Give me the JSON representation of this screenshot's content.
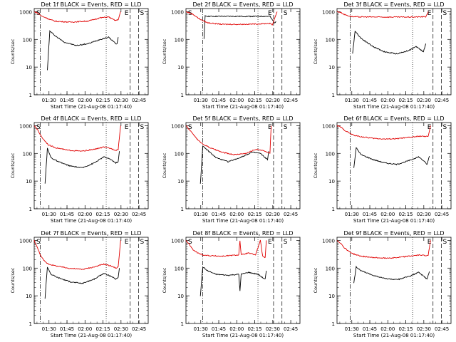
{
  "colors": {
    "events": "#000000",
    "lld": "#e00000",
    "axis": "#000000"
  },
  "shared": {
    "ylabel": "Counts/sec",
    "xlabel": "Start Time (21-Aug-08 01:17:40)",
    "xticks": [
      "01:30",
      "01:45",
      "02:00",
      "02:15",
      "02:30",
      "02:45"
    ],
    "yticks": [
      "1",
      "10",
      "100",
      "1000"
    ]
  },
  "chart_data": [
    {
      "type": "line",
      "title": "Det 1f BLACK = Events, RED = LLD",
      "xlabel": "Start Time (21-Aug-08 01:17:40)",
      "ylabel": "Counts/sec",
      "x_unit": "minutes after 01:17:40",
      "xlim": [
        0,
        95
      ],
      "ylim": [
        1,
        1300
      ],
      "yscale": "log",
      "markers": [
        "S",
        "E",
        "S"
      ],
      "series": [
        {
          "name": "Events",
          "x": [
            11,
            13,
            18,
            25,
            35,
            45,
            55,
            62,
            66,
            68,
            69,
            70
          ],
          "values": [
            8,
            200,
            130,
            80,
            60,
            70,
            100,
            120,
            85,
            70,
            70,
            120
          ]
        },
        {
          "name": "LLD",
          "x": [
            0,
            3,
            6,
            10,
            13,
            18,
            30,
            45,
            55,
            62,
            66,
            68,
            70,
            72
          ],
          "values": [
            1000,
            900,
            700,
            600,
            520,
            450,
            420,
            460,
            600,
            650,
            520,
            480,
            520,
            1000
          ]
        }
      ]
    },
    {
      "type": "line",
      "title": "Det 2f BLACK = Events, RED = LLD",
      "xlabel": "Start Time (21-Aug-08 01:17:40)",
      "ylabel": "Counts/sec",
      "x_unit": "minutes after 01:17:40",
      "xlim": [
        0,
        95
      ],
      "ylim": [
        1,
        1300
      ],
      "yscale": "log",
      "markers": [
        "S",
        "E",
        "S"
      ],
      "series": [
        {
          "name": "Events",
          "x": [
            15,
            16,
            20,
            40,
            60,
            70,
            72,
            74,
            75
          ],
          "values": [
            100,
            700,
            680,
            680,
            680,
            680,
            500,
            400,
            450
          ]
        },
        {
          "name": "LLD",
          "x": [
            0,
            3,
            6,
            10,
            13,
            18,
            30,
            45,
            60,
            70,
            72,
            74,
            76
          ],
          "values": [
            1000,
            900,
            800,
            600,
            500,
            400,
            350,
            350,
            360,
            380,
            330,
            600,
            1000
          ]
        }
      ]
    },
    {
      "type": "line",
      "title": "Det 3f BLACK = Events, RED = LLD",
      "xlabel": "Start Time (21-Aug-08 01:17:40)",
      "ylabel": "Counts/sec",
      "x_unit": "minutes after 01:17:40",
      "xlim": [
        0,
        95
      ],
      "ylim": [
        1,
        1300
      ],
      "yscale": "log",
      "markers": [
        "E",
        "S"
      ],
      "series": [
        {
          "name": "Events",
          "x": [
            13,
            15,
            20,
            30,
            40,
            50,
            60,
            66,
            69,
            72,
            74
          ],
          "values": [
            30,
            200,
            110,
            55,
            35,
            30,
            40,
            55,
            45,
            35,
            70
          ]
        },
        {
          "name": "LLD",
          "x": [
            0,
            3,
            6,
            10,
            14,
            20,
            40,
            60,
            70,
            74,
            76
          ],
          "values": [
            1000,
            950,
            800,
            700,
            650,
            650,
            640,
            640,
            650,
            660,
            1000
          ]
        }
      ]
    },
    {
      "type": "line",
      "title": "Det 4f BLACK = Events, RED = LLD",
      "xlabel": "Start Time (21-Aug-08 01:17:40)",
      "ylabel": "Counts/sec",
      "x_unit": "minutes after 01:17:40",
      "xlim": [
        0,
        95
      ],
      "ylim": [
        1,
        1300
      ],
      "yscale": "log",
      "markers": [
        "S",
        "E",
        "S"
      ],
      "series": [
        {
          "name": "Events",
          "x": [
            9,
            11,
            14,
            20,
            30,
            40,
            50,
            58,
            64,
            68,
            70,
            71
          ],
          "values": [
            8,
            150,
            70,
            50,
            35,
            30,
            45,
            75,
            60,
            45,
            50,
            120
          ]
        },
        {
          "name": "LLD",
          "x": [
            0,
            3,
            6,
            9,
            12,
            18,
            28,
            40,
            50,
            58,
            64,
            68,
            70,
            72
          ],
          "values": [
            1000,
            700,
            400,
            280,
            200,
            160,
            130,
            120,
            140,
            170,
            150,
            130,
            140,
            1000
          ]
        }
      ]
    },
    {
      "type": "line",
      "title": "Det 5f BLACK = Events, RED = LLD",
      "xlabel": "Start Time (21-Aug-08 01:17:40)",
      "ylabel": "Counts/sec",
      "x_unit": "minutes after 01:17:40",
      "xlim": [
        0,
        95
      ],
      "ylim": [
        1,
        1300
      ],
      "yscale": "log",
      "markers": [
        "S",
        "E",
        "S"
      ],
      "series": [
        {
          "name": "Events",
          "x": [
            12,
            14,
            18,
            25,
            35,
            45,
            55,
            62,
            66,
            68,
            69
          ],
          "values": [
            8,
            180,
            130,
            70,
            50,
            70,
            110,
            100,
            70,
            60,
            120
          ]
        },
        {
          "name": "LLD",
          "x": [
            0,
            3,
            6,
            10,
            14,
            20,
            30,
            40,
            50,
            58,
            64,
            68,
            70,
            71
          ],
          "values": [
            1000,
            700,
            500,
            300,
            220,
            160,
            110,
            90,
            100,
            140,
            130,
            110,
            100,
            1000
          ]
        }
      ]
    },
    {
      "type": "line",
      "title": "Det 6f BLACK = Events, RED = LLD",
      "xlabel": "Start Time (21-Aug-08 01:17:40)",
      "ylabel": "Counts/sec",
      "x_unit": "minutes after 01:17:40",
      "xlim": [
        0,
        95
      ],
      "ylim": [
        1,
        1300
      ],
      "yscale": "log",
      "markers": [
        "E",
        "S"
      ],
      "series": [
        {
          "name": "Events",
          "x": [
            14,
            16,
            20,
            30,
            40,
            50,
            60,
            68,
            72,
            75,
            77
          ],
          "values": [
            30,
            160,
            90,
            60,
            45,
            40,
            55,
            75,
            55,
            40,
            80
          ]
        },
        {
          "name": "LLD",
          "x": [
            0,
            3,
            6,
            10,
            14,
            20,
            30,
            40,
            50,
            60,
            70,
            74,
            76,
            78
          ],
          "values": [
            1000,
            900,
            700,
            550,
            450,
            400,
            350,
            330,
            340,
            380,
            420,
            400,
            420,
            1000
          ]
        }
      ]
    },
    {
      "type": "line",
      "title": "Det 7f BLACK = Events, RED = LLD",
      "xlabel": "Start Time (21-Aug-08 01:17:40)",
      "ylabel": "Counts/sec",
      "x_unit": "minutes after 01:17:40",
      "xlim": [
        0,
        95
      ],
      "ylim": [
        1,
        1300
      ],
      "yscale": "log",
      "markers": [
        "S",
        "E",
        "S"
      ],
      "series": [
        {
          "name": "Events",
          "x": [
            9,
            11,
            14,
            20,
            30,
            40,
            50,
            58,
            64,
            68,
            70,
            71
          ],
          "values": [
            8,
            110,
            60,
            45,
            32,
            28,
            40,
            65,
            50,
            40,
            45,
            100
          ]
        },
        {
          "name": "LLD",
          "x": [
            0,
            3,
            6,
            9,
            12,
            18,
            28,
            40,
            50,
            58,
            64,
            68,
            70,
            72
          ],
          "values": [
            1000,
            500,
            250,
            170,
            140,
            120,
            100,
            90,
            110,
            140,
            120,
            100,
            110,
            1000
          ]
        }
      ]
    },
    {
      "type": "line",
      "title": "Det 8f BLACK = Events, RED = LLD",
      "xlabel": "Start Time (21-Aug-08 01:17:40)",
      "ylabel": "Counts/sec",
      "x_unit": "minutes after 01:17:40",
      "xlim": [
        0,
        95
      ],
      "ylim": [
        1,
        1300
      ],
      "yscale": "log",
      "markers": [
        "S",
        "E",
        "S"
      ],
      "series": [
        {
          "name": "Events",
          "x": [
            12,
            14,
            18,
            25,
            35,
            44,
            45,
            46,
            52,
            60,
            64,
            66,
            67
          ],
          "values": [
            10,
            110,
            80,
            60,
            55,
            60,
            15,
            60,
            70,
            60,
            45,
            40,
            80
          ]
        },
        {
          "name": "LLD",
          "x": [
            0,
            3,
            6,
            10,
            14,
            20,
            30,
            44,
            45,
            46,
            52,
            58,
            62,
            64,
            66,
            67
          ],
          "values": [
            1000,
            700,
            450,
            350,
            300,
            280,
            270,
            300,
            1000,
            300,
            350,
            300,
            1000,
            260,
            240,
            1000
          ]
        }
      ]
    },
    {
      "type": "line",
      "title": "Det 9f BLACK = Events, RED = LLD",
      "xlabel": "Start Time (21-Aug-08 01:17:40)",
      "ylabel": "Counts/sec",
      "x_unit": "minutes after 01:17:40",
      "xlim": [
        0,
        95
      ],
      "ylim": [
        1,
        1300
      ],
      "yscale": "log",
      "markers": [
        "E",
        "S"
      ],
      "series": [
        {
          "name": "Events",
          "x": [
            14,
            16,
            20,
            30,
            40,
            50,
            60,
            68,
            72,
            75,
            77
          ],
          "values": [
            30,
            110,
            80,
            55,
            42,
            38,
            50,
            70,
            52,
            40,
            75
          ]
        },
        {
          "name": "LLD",
          "x": [
            0,
            3,
            6,
            10,
            14,
            20,
            30,
            40,
            50,
            60,
            70,
            74,
            76,
            78
          ],
          "values": [
            1000,
            800,
            550,
            400,
            320,
            270,
            240,
            230,
            240,
            270,
            300,
            280,
            300,
            1000
          ]
        }
      ]
    }
  ]
}
